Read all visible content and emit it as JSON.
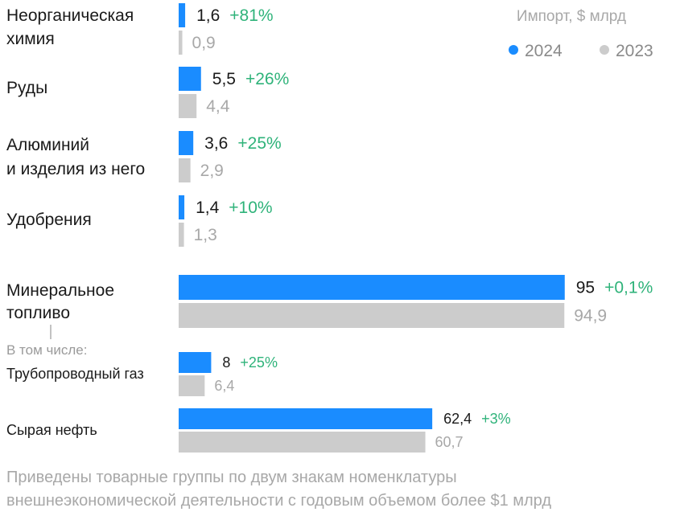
{
  "chart_data": {
    "type": "bar",
    "unit_label": "Импорт, $ млрд",
    "legend": [
      {
        "name": "2024",
        "color": "#1a8cff"
      },
      {
        "name": "2023",
        "color": "#cccccc"
      }
    ],
    "categories": [
      {
        "name": "Неорганическая химия",
        "lines": [
          "Неорганическая",
          "химия"
        ],
        "v2024": 1.6,
        "v2023": 0.9,
        "label2024": "1,6",
        "label2023": "0,9",
        "change": "+81%"
      },
      {
        "name": "Руды",
        "lines": [
          "Руды"
        ],
        "v2024": 5.5,
        "v2023": 4.4,
        "label2024": "5,5",
        "label2023": "4,4",
        "change": "+26%"
      },
      {
        "name": "Алюминий и изделия из него",
        "lines": [
          "Алюминий",
          "и изделия из него"
        ],
        "v2024": 3.6,
        "v2023": 2.9,
        "label2024": "3,6",
        "label2023": "2,9",
        "change": "+25%"
      },
      {
        "name": "Удобрения",
        "lines": [
          "Удобрения"
        ],
        "v2024": 1.4,
        "v2023": 1.3,
        "label2024": "1,4",
        "label2023": "1,3",
        "change": "+10%"
      },
      {
        "name": "Минеральное топливо",
        "lines": [
          "Минеральное",
          "топливо"
        ],
        "v2024": 95,
        "v2023": 94.9,
        "label2024": "95",
        "label2023": "94,9",
        "change": "+0,1%"
      },
      {
        "name": "Трубопроводный газ",
        "lines": [
          "Трубопроводный газ"
        ],
        "v2024": 8,
        "v2023": 6.4,
        "label2024": "8",
        "label2023": "6,4",
        "change": "+25%",
        "sub": true
      },
      {
        "name": "Сырая нефть",
        "lines": [
          "Сырая нефть"
        ],
        "v2024": 62.4,
        "v2023": 60.7,
        "label2024": "62,4",
        "label2023": "60,7",
        "change": "+3%",
        "sub": true
      }
    ],
    "subgroup_label": "В том числе:",
    "footnote": [
      "Приведены товарные группы по двум знакам номенклатуры",
      "внешнеэкономической деятельности с годовым объемом более $1 млрд"
    ]
  }
}
